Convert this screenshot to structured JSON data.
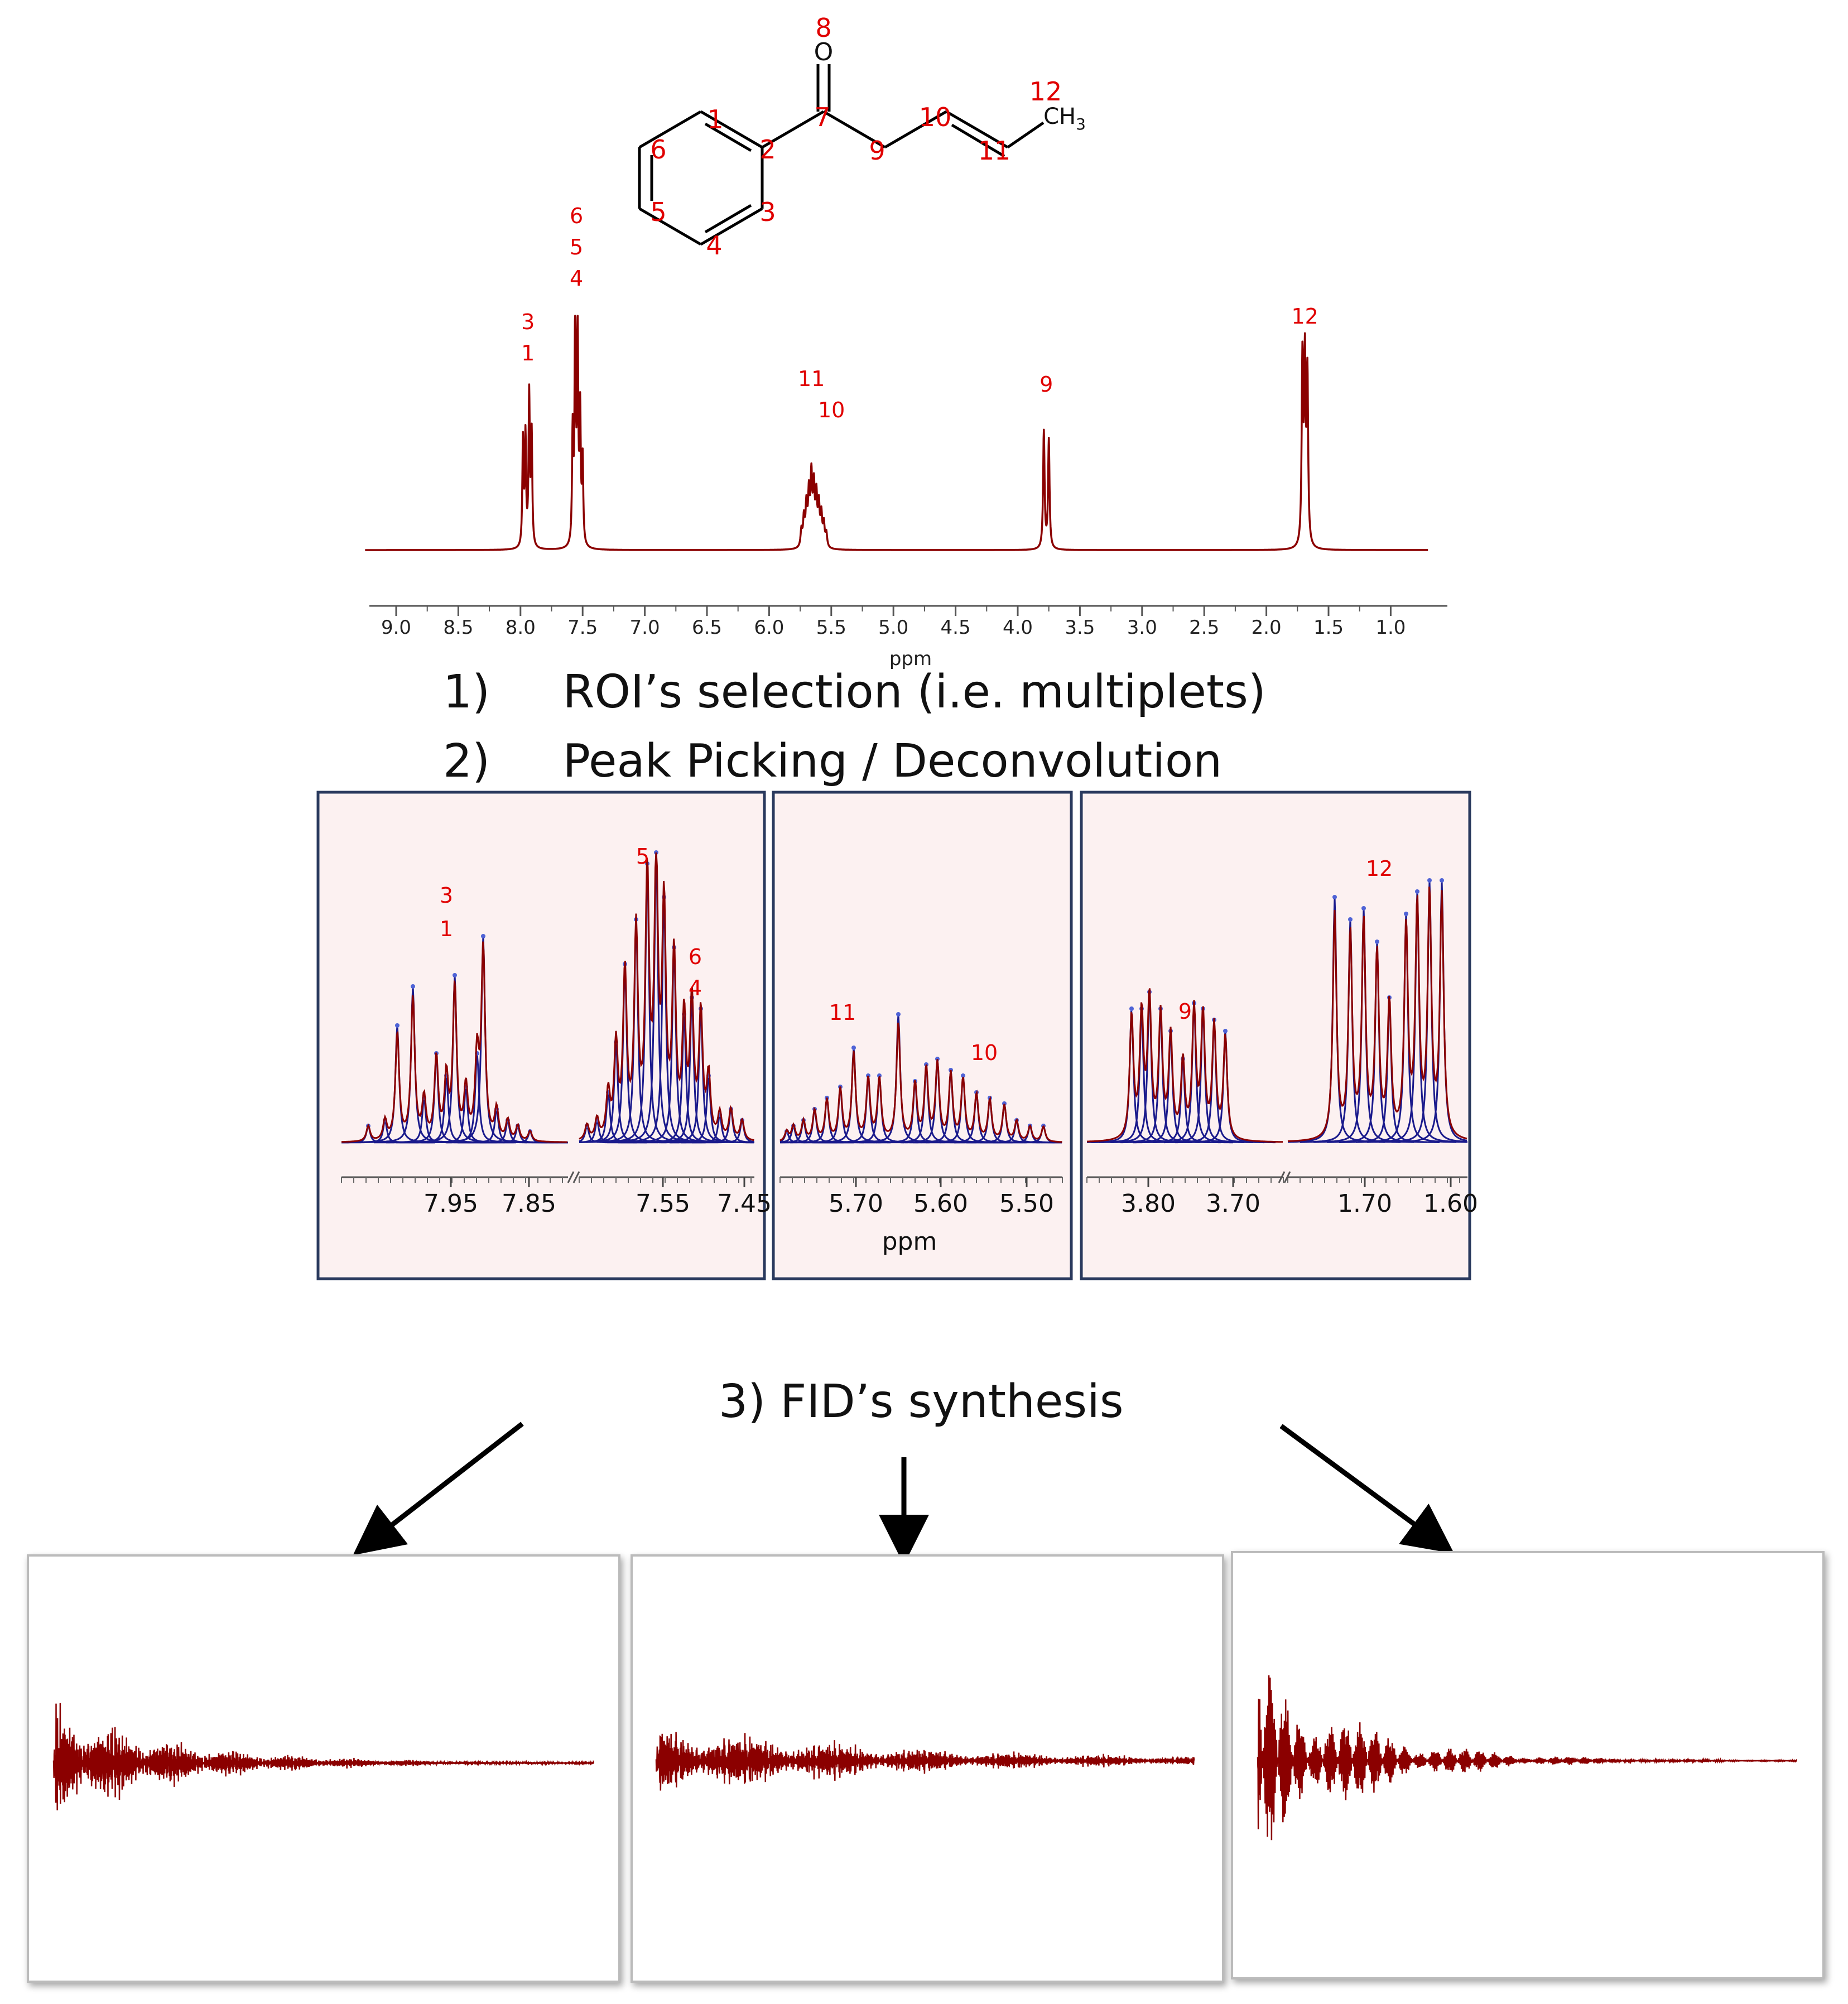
{
  "steps": {
    "s1": "1)     ROI’s selection (i.e. multiplets)",
    "s2": "2)     Peak Picking / Deconvolution",
    "s3": "3) FID’s synthesis"
  },
  "molecule": {
    "atom_labels": [
      "1",
      "2",
      "3",
      "4",
      "5",
      "6",
      "7",
      "8",
      "9",
      "10",
      "11",
      "12"
    ],
    "oxygen": "O",
    "methyl": "CH",
    "methyl_sub": "3"
  },
  "spectrum": {
    "xlabel": "ppm",
    "ticks": [
      "9.0",
      "8.5",
      "8.0",
      "7.5",
      "7.0",
      "6.5",
      "6.0",
      "5.5",
      "5.0",
      "4.5",
      "4.0",
      "3.5",
      "3.0",
      "2.5",
      "2.0",
      "1.5",
      "1.0"
    ],
    "peak_labels": [
      {
        "ppm": 7.94,
        "lines": [
          "3",
          "1"
        ]
      },
      {
        "ppm": 7.55,
        "lines": [
          "6",
          "5",
          "4"
        ]
      },
      {
        "ppm": 5.66,
        "lines": [
          "11",
          "10"
        ]
      },
      {
        "ppm": 3.77,
        "lines": [
          "9"
        ]
      },
      {
        "ppm": 1.69,
        "lines": [
          "12"
        ]
      }
    ]
  },
  "zoom": {
    "xlabel": "ppm",
    "panel1_ticks": [
      "7.95",
      "7.85",
      "7.55",
      "7.45"
    ],
    "panel2_ticks": [
      "5.70",
      "5.60",
      "5.50"
    ],
    "panel3_ticks": [
      "3.80",
      "3.70",
      "1.70",
      "1.60"
    ],
    "labels": [
      {
        "text": "3"
      },
      {
        "text": "1"
      },
      {
        "text": "5"
      },
      {
        "text": "6"
      },
      {
        "text": "4"
      },
      {
        "text": "11"
      },
      {
        "text": "10"
      },
      {
        "text": "9"
      },
      {
        "text": "12"
      }
    ]
  },
  "colors": {
    "spectrum": "#8b0000",
    "fit": "#1a1a8c",
    "label": "#e00000",
    "panel_bg": "#fcf1f1",
    "panel_border": "#2a3a5e",
    "fid": "#8b0000"
  }
}
